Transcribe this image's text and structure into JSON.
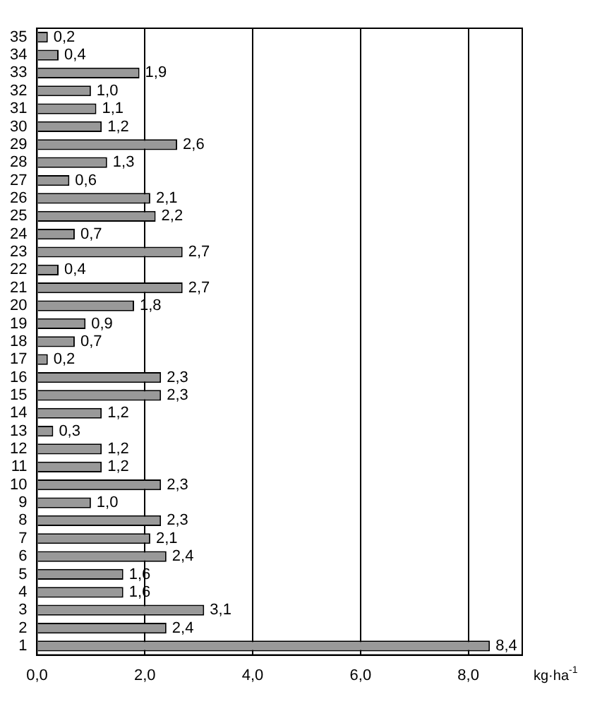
{
  "chart_data": {
    "type": "bar",
    "orientation": "horizontal",
    "xlabel": "kg·ha$^{-1}$",
    "categories": [
      "35",
      "34",
      "33",
      "32",
      "31",
      "30",
      "29",
      "28",
      "27",
      "26",
      "25",
      "24",
      "23",
      "22",
      "21",
      "20",
      "19",
      "18",
      "17",
      "16",
      "15",
      "14",
      "13",
      "12",
      "11",
      "10",
      "9",
      "8",
      "7",
      "6",
      "5",
      "4",
      "3",
      "2",
      "1"
    ],
    "values": [
      0.2,
      0.4,
      1.9,
      1.0,
      1.1,
      1.2,
      2.6,
      1.3,
      0.6,
      2.1,
      2.2,
      0.7,
      2.7,
      0.4,
      2.7,
      1.8,
      0.9,
      0.7,
      0.2,
      2.3,
      2.3,
      1.2,
      0.3,
      1.2,
      1.2,
      2.3,
      1.0,
      2.3,
      2.1,
      2.4,
      1.6,
      1.6,
      3.1,
      2.4,
      8.4
    ],
    "value_labels": [
      "0,2",
      "0,4",
      "1,9",
      "1,0",
      "1,1",
      "1,2",
      "2,6",
      "1,3",
      "0,6",
      "2,1",
      "2,2",
      "0,7",
      "2,7",
      "0,4",
      "2,7",
      "1,8",
      "0,9",
      "0,7",
      "0,2",
      "2,3",
      "2,3",
      "1,2",
      "0,3",
      "1,2",
      "1,2",
      "2,3",
      "1,0",
      "2,3",
      "2,1",
      "2,4",
      "1,6",
      "1,6",
      "3,1",
      "2,4",
      "8,4"
    ],
    "color": "#999999",
    "xlim": [
      0,
      9
    ],
    "xticks": [
      {
        "value": 0,
        "label": "0,0"
      },
      {
        "value": 2,
        "label": "2,0"
      },
      {
        "value": 4,
        "label": "4,0"
      },
      {
        "value": 6,
        "label": "6,0"
      },
      {
        "value": 8,
        "label": "8,0"
      }
    ],
    "grid": "x"
  }
}
